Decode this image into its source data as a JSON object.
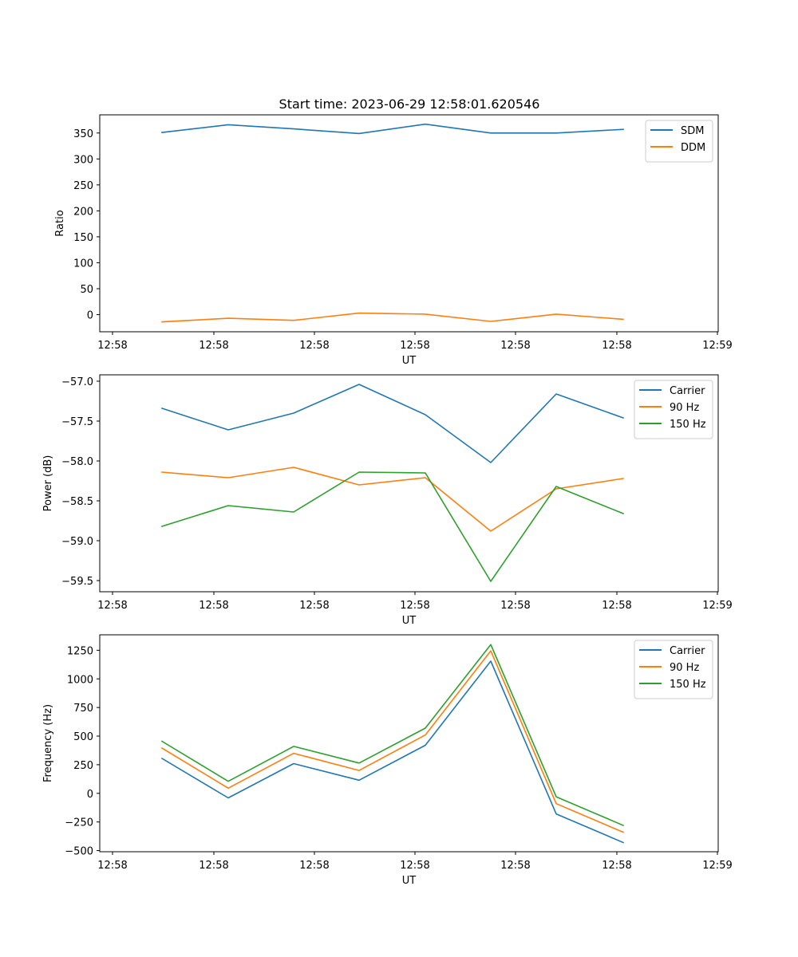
{
  "figure_title": "Start time: 2023-06-29 12:58:01.620546",
  "colors": {
    "blue": "#1f77b4",
    "orange": "#ff7f0e",
    "green": "#2ca02c"
  },
  "chart_data": [
    {
      "type": "line",
      "title": "Start time: 2023-06-29 12:58:01.620546",
      "xlabel": "UT",
      "ylabel": "Ratio",
      "xtick_labels": [
        "12:58",
        "12:58",
        "12:58",
        "12:58",
        "12:58",
        "12:58",
        "12:59"
      ],
      "x": [
        1,
        2,
        3,
        4,
        5,
        6,
        7,
        8
      ],
      "ylim": [
        -33,
        385
      ],
      "yticks": [
        0,
        50,
        100,
        150,
        200,
        250,
        300,
        350
      ],
      "legend": "top-right",
      "series": [
        {
          "name": "SDM",
          "color": "#1f77b4",
          "values": [
            351,
            366,
            358,
            349,
            367,
            350,
            350,
            357
          ]
        },
        {
          "name": "DDM",
          "color": "#ff7f0e",
          "values": [
            -14,
            -7,
            -11,
            3,
            1,
            -13,
            1,
            -9
          ]
        }
      ]
    },
    {
      "type": "line",
      "xlabel": "UT",
      "ylabel": "Power (dB)",
      "xtick_labels": [
        "12:58",
        "12:58",
        "12:58",
        "12:58",
        "12:58",
        "12:58",
        "12:59"
      ],
      "x": [
        1,
        2,
        3,
        4,
        5,
        6,
        7,
        8
      ],
      "ylim": [
        -59.64,
        -56.92
      ],
      "yticks": [
        -59.5,
        -59.0,
        -58.5,
        -58.0,
        -57.5,
        -57.0
      ],
      "ytick_labels": [
        "−59.5",
        "−59.0",
        "−58.5",
        "−58.0",
        "−57.5",
        "−57.0"
      ],
      "legend": "top-right",
      "series": [
        {
          "name": "Carrier",
          "color": "#1f77b4",
          "values": [
            -57.34,
            -57.61,
            -57.4,
            -57.04,
            -57.42,
            -58.02,
            -57.16,
            -57.46
          ]
        },
        {
          "name": "90 Hz",
          "color": "#ff7f0e",
          "values": [
            -58.14,
            -58.21,
            -58.08,
            -58.3,
            -58.21,
            -58.88,
            -58.35,
            -58.22
          ]
        },
        {
          "name": "150 Hz",
          "color": "#2ca02c",
          "values": [
            -58.82,
            -58.56,
            -58.64,
            -58.14,
            -58.15,
            -59.51,
            -58.32,
            -58.66
          ]
        }
      ]
    },
    {
      "type": "line",
      "xlabel": "UT",
      "ylabel": "Frequency (Hz)",
      "xtick_labels": [
        "12:58",
        "12:58",
        "12:58",
        "12:58",
        "12:58",
        "12:58",
        "12:59"
      ],
      "x": [
        1,
        2,
        3,
        4,
        5,
        6,
        7,
        8
      ],
      "ylim": [
        -510,
        1385
      ],
      "yticks": [
        -500,
        -250,
        0,
        250,
        500,
        750,
        1000,
        1250
      ],
      "ytick_labels": [
        "−500",
        "−250",
        "0",
        "250",
        "500",
        "750",
        "1000",
        "1250"
      ],
      "legend": "top-right",
      "series": [
        {
          "name": "Carrier",
          "color": "#1f77b4",
          "values": [
            305,
            -40,
            260,
            115,
            420,
            1155,
            -180,
            -430
          ]
        },
        {
          "name": "90 Hz",
          "color": "#ff7f0e",
          "values": [
            395,
            45,
            350,
            200,
            510,
            1245,
            -90,
            -340
          ]
        },
        {
          "name": "150 Hz",
          "color": "#2ca02c",
          "values": [
            455,
            105,
            410,
            265,
            570,
            1300,
            -30,
            -280
          ]
        }
      ]
    }
  ]
}
